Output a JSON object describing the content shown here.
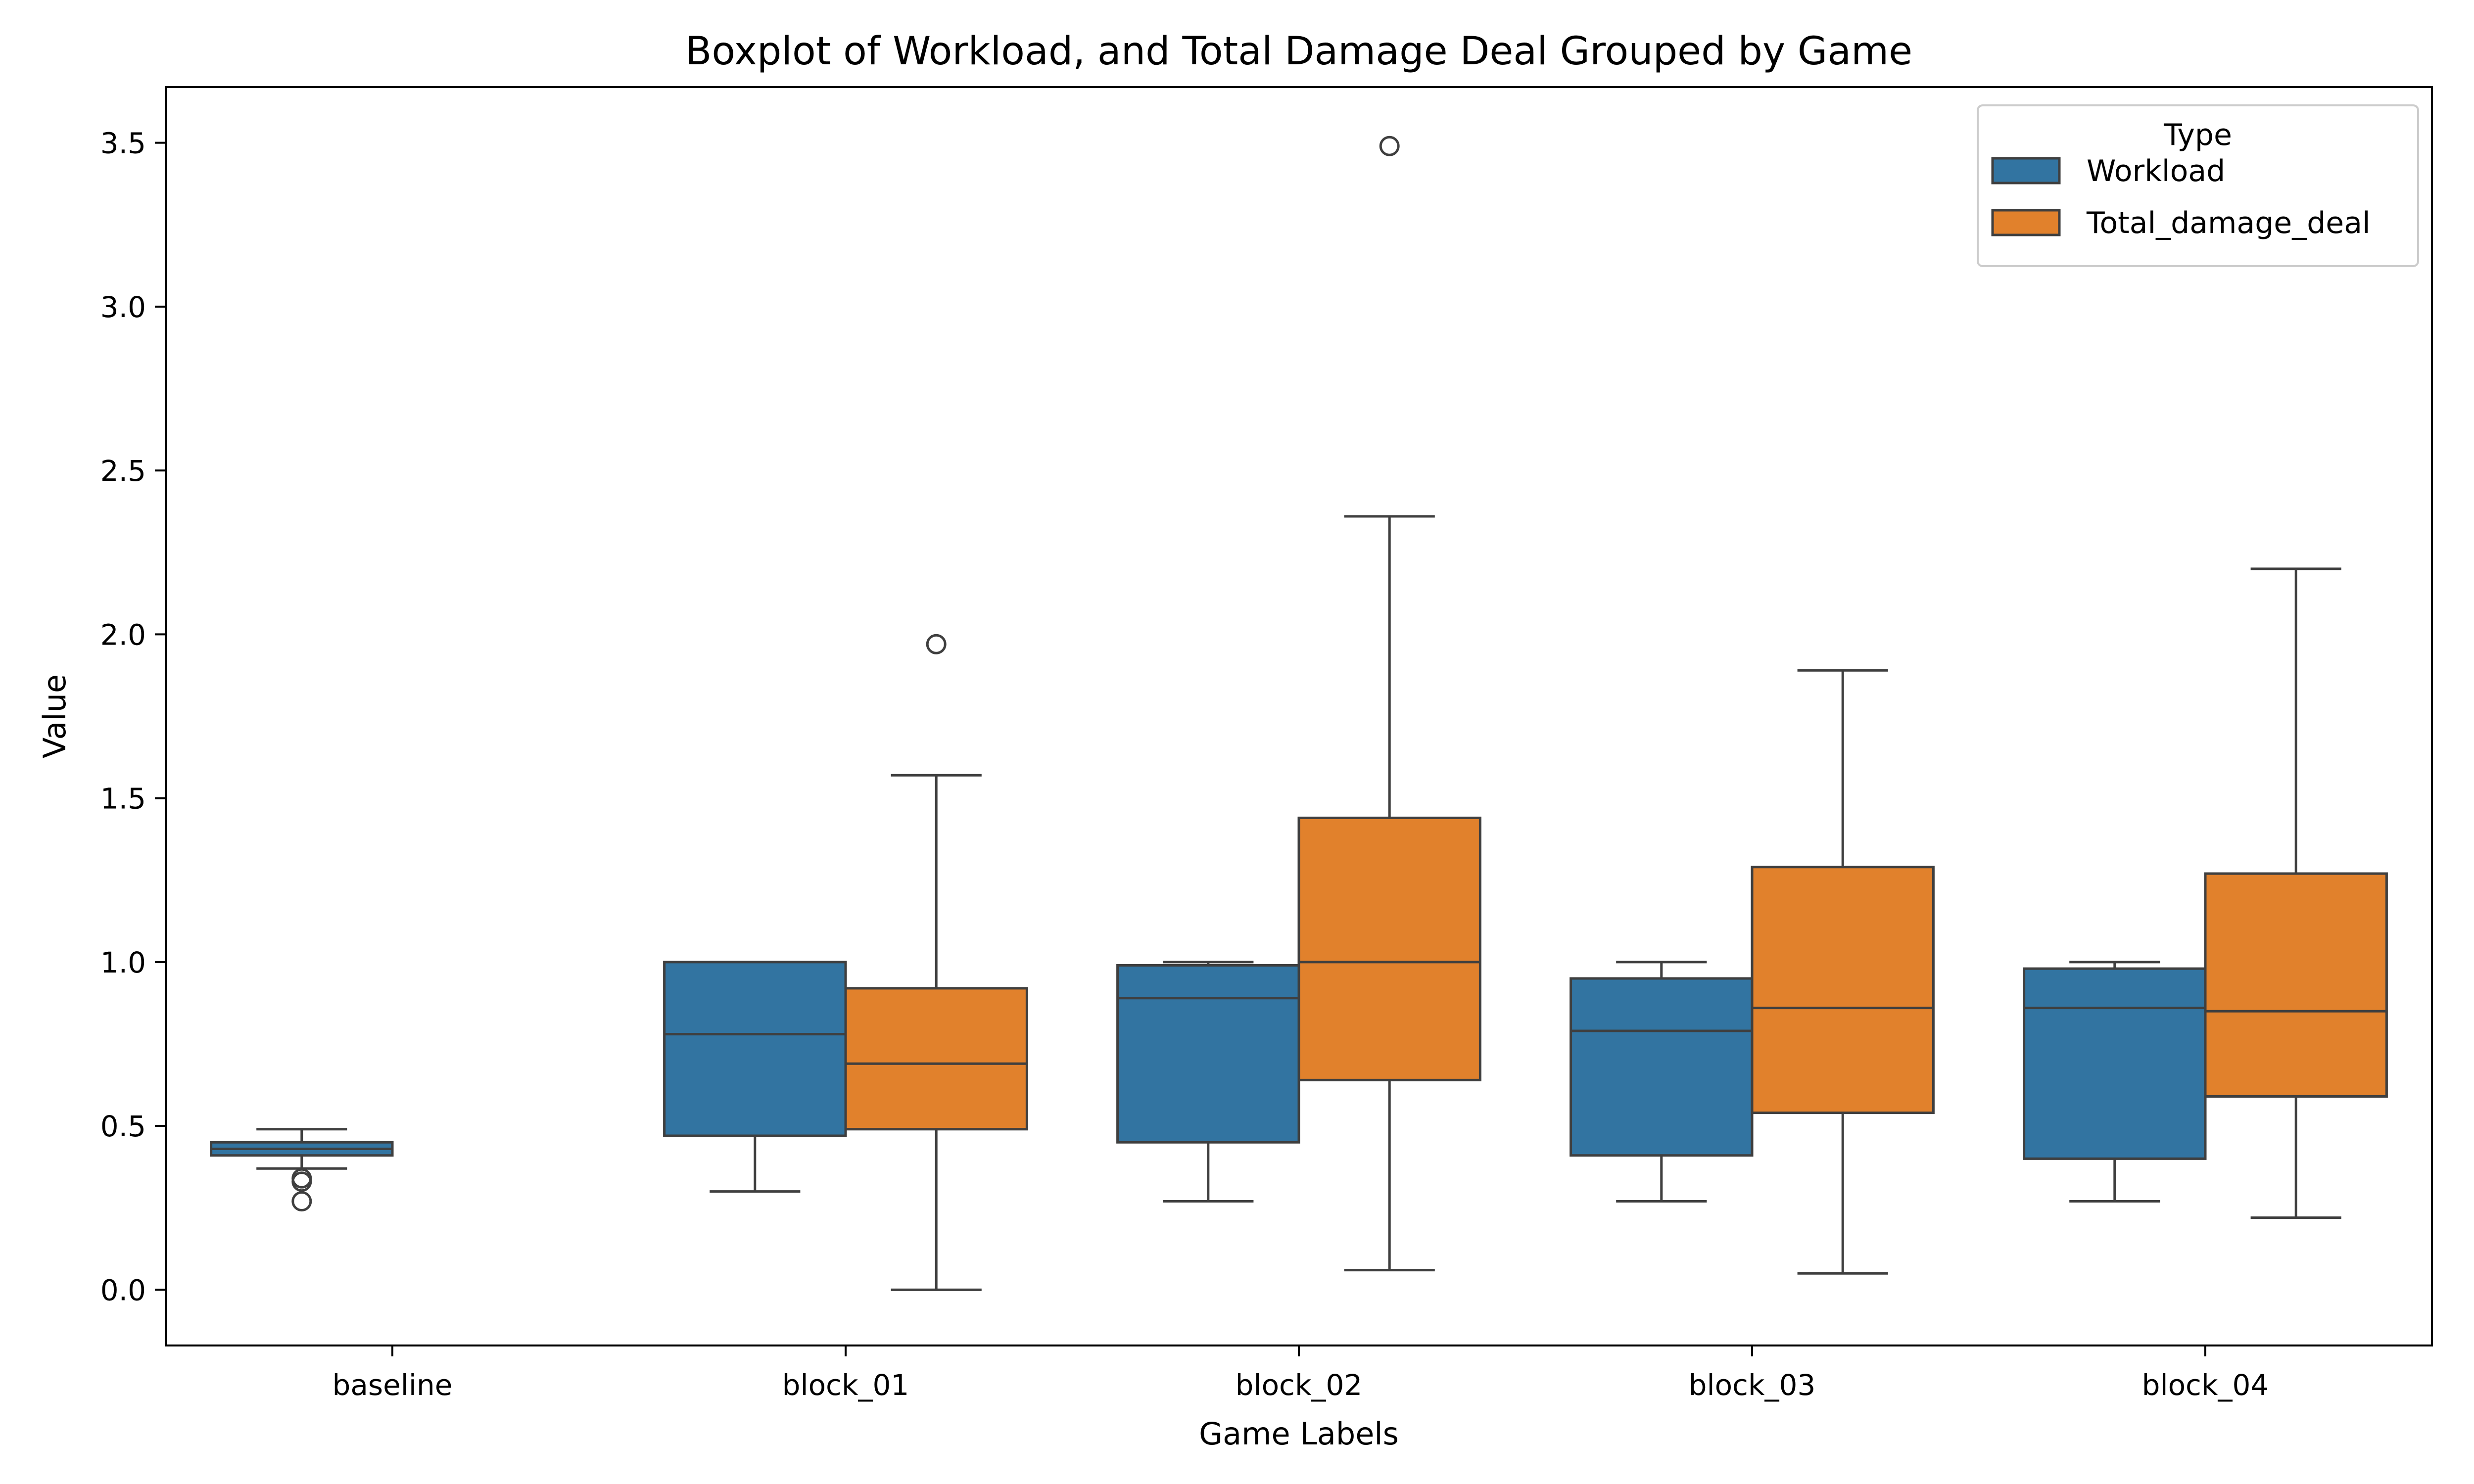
{
  "chart_data": {
    "type": "box",
    "title": "Boxplot of Workload, and Total Damage Deal Grouped by Game",
    "xlabel": "Game Labels",
    "ylabel": "Value",
    "ylim": [
      -0.17,
      3.67
    ],
    "yticks": [
      "0.0",
      "0.5",
      "1.0",
      "1.5",
      "2.0",
      "2.5",
      "3.0",
      "3.5"
    ],
    "categories": [
      "baseline",
      "block_01",
      "block_02",
      "block_03",
      "block_04"
    ],
    "legend": {
      "title": "Type",
      "position": "top-right"
    },
    "series": [
      {
        "name": "Workload",
        "color": "#3274a1",
        "boxes": [
          {
            "category": "baseline",
            "whislo": 0.37,
            "q1": 0.41,
            "median": 0.43,
            "q3": 0.45,
            "whishi": 0.49,
            "fliers": [
              0.33,
              0.34,
              0.27
            ]
          },
          {
            "category": "block_01",
            "whislo": 0.3,
            "q1": 0.47,
            "median": 0.78,
            "q3": 1.0,
            "whishi": 1.0,
            "fliers": []
          },
          {
            "category": "block_02",
            "whislo": 0.27,
            "q1": 0.45,
            "median": 0.89,
            "q3": 0.99,
            "whishi": 1.0,
            "fliers": []
          },
          {
            "category": "block_03",
            "whislo": 0.27,
            "q1": 0.41,
            "median": 0.79,
            "q3": 0.95,
            "whishi": 1.0,
            "fliers": []
          },
          {
            "category": "block_04",
            "whislo": 0.27,
            "q1": 0.4,
            "median": 0.86,
            "q3": 0.98,
            "whishi": 1.0,
            "fliers": []
          }
        ]
      },
      {
        "name": "Total_damage_deal",
        "color": "#e1812c",
        "boxes": [
          {
            "category": "block_01",
            "whislo": 0.0,
            "q1": 0.49,
            "median": 0.69,
            "q3": 0.92,
            "whishi": 1.57,
            "fliers": [
              1.97
            ]
          },
          {
            "category": "block_02",
            "whislo": 0.06,
            "q1": 0.64,
            "median": 1.0,
            "q3": 1.44,
            "whishi": 2.36,
            "fliers": [
              3.49
            ]
          },
          {
            "category": "block_03",
            "whislo": 0.05,
            "q1": 0.54,
            "median": 0.86,
            "q3": 1.29,
            "whishi": 1.89,
            "fliers": []
          },
          {
            "category": "block_04",
            "whislo": 0.22,
            "q1": 0.59,
            "median": 0.85,
            "q3": 1.27,
            "whishi": 2.2,
            "fliers": []
          }
        ]
      }
    ]
  }
}
